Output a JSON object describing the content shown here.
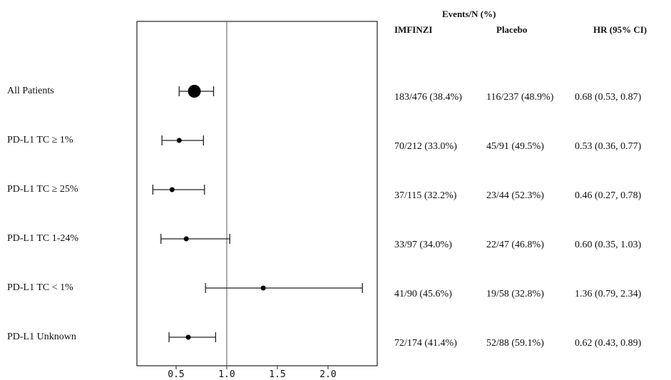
{
  "header": {
    "events_title": "Events/N (%)",
    "col_imfinzi": "IMFINZI",
    "col_placebo": "Placebo",
    "col_hr": "HR (95% CI)"
  },
  "chart_data": {
    "type": "forest",
    "x_ticks": [
      "0.5",
      "1.0",
      "1.5",
      "2.0"
    ],
    "x_tick_values": [
      0.5,
      1.0,
      1.5,
      2.0
    ],
    "xlim": [
      0.1,
      2.5
    ],
    "reference_line": 1.0,
    "rows": [
      {
        "label": "All Patients",
        "hr": 0.68,
        "ci_low": 0.53,
        "ci_high": 0.87,
        "emphasis": true,
        "imfinzi": "183/476 (38.4%)",
        "placebo": "116/237 (48.9%)",
        "hr_text": "0.68 (0.53, 0.87)"
      },
      {
        "label": "PD-L1  TC  ≥ 1%",
        "hr": 0.53,
        "ci_low": 0.36,
        "ci_high": 0.77,
        "emphasis": false,
        "imfinzi": "70/212 (33.0%)",
        "placebo": "45/91 (49.5%)",
        "hr_text": "0.53 (0.36, 0.77)"
      },
      {
        "label": "PD-L1  TC ≥ 25%",
        "hr": 0.46,
        "ci_low": 0.27,
        "ci_high": 0.78,
        "emphasis": false,
        "imfinzi": "37/115 (32.2%)",
        "placebo": "23/44 (52.3%)",
        "hr_text": "0.46 (0.27, 0.78)"
      },
      {
        "label": "PD-L1  TC  1-24%",
        "hr": 0.6,
        "ci_low": 0.35,
        "ci_high": 1.03,
        "emphasis": false,
        "imfinzi": "33/97 (34.0%)",
        "placebo": "22/47 (46.8%)",
        "hr_text": "0.60 (0.35, 1.03)"
      },
      {
        "label": "PD-L1  TC < 1%",
        "hr": 1.36,
        "ci_low": 0.79,
        "ci_high": 2.34,
        "emphasis": false,
        "imfinzi": "41/90 (45.6%)",
        "placebo": "19/58 (32.8%)",
        "hr_text": "1.36 (0.79, 2.34)"
      },
      {
        "label": "PD-L1  Unknown",
        "hr": 0.62,
        "ci_low": 0.43,
        "ci_high": 0.89,
        "emphasis": false,
        "imfinzi": "72/174 (41.4%)",
        "placebo": "52/88 (59.1%)",
        "hr_text": "0.62 (0.43, 0.89)"
      }
    ]
  }
}
